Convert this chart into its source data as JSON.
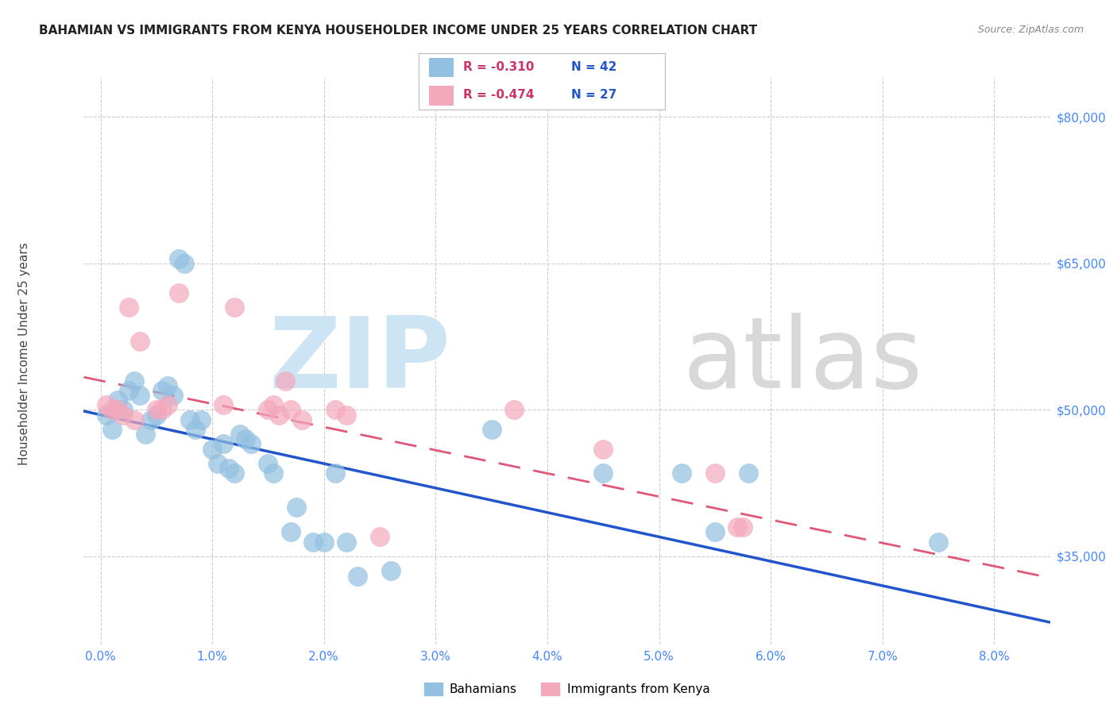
{
  "title": "BAHAMIAN VS IMMIGRANTS FROM KENYA HOUSEHOLDER INCOME UNDER 25 YEARS CORRELATION CHART",
  "source": "Source: ZipAtlas.com",
  "xlabel_ticks": [
    "0.0%",
    "1.0%",
    "2.0%",
    "3.0%",
    "4.0%",
    "5.0%",
    "6.0%",
    "7.0%",
    "8.0%"
  ],
  "xlabel_vals": [
    0.0,
    1.0,
    2.0,
    3.0,
    4.0,
    5.0,
    6.0,
    7.0,
    8.0
  ],
  "ylabel_ticks": [
    35000,
    50000,
    65000,
    80000
  ],
  "ylabel_labels": [
    "$35,000",
    "$50,000",
    "$65,000",
    "$80,000"
  ],
  "ymin": 26000,
  "ymax": 84000,
  "xmin": -0.15,
  "xmax": 8.5,
  "legend_r1": "R = -0.310",
  "legend_n1": "N = 42",
  "legend_r2": "R = -0.474",
  "legend_n2": "N = 27",
  "series1_label": "Bahamians",
  "series2_label": "Immigrants from Kenya",
  "color1": "#92c0e0",
  "color2": "#f4a8bc",
  "trendline1_color": "#2255cc",
  "trendline2_color": "#e05878",
  "title_fontsize": 11,
  "source_fontsize": 9,
  "background_color": "#ffffff",
  "grid_color": "#cccccc",
  "axis_color": "#4488ff",
  "blue_x": [
    0.05,
    0.1,
    0.15,
    0.2,
    0.25,
    0.3,
    0.35,
    0.4,
    0.45,
    0.5,
    0.55,
    0.6,
    0.65,
    0.7,
    0.75,
    0.8,
    0.85,
    0.9,
    1.0,
    1.05,
    1.1,
    1.15,
    1.2,
    1.25,
    1.3,
    1.35,
    1.5,
    1.55,
    1.7,
    1.75,
    1.9,
    2.0,
    2.1,
    2.2,
    2.3,
    2.6,
    3.5,
    4.5,
    5.2,
    5.5,
    5.8,
    7.5
  ],
  "blue_y": [
    49500,
    48000,
    51000,
    50000,
    52000,
    53000,
    51500,
    47500,
    49000,
    49500,
    52000,
    52500,
    51500,
    65500,
    65000,
    49000,
    48000,
    49000,
    46000,
    44500,
    46500,
    44000,
    43500,
    47500,
    47000,
    46500,
    44500,
    43500,
    37500,
    40000,
    36500,
    36500,
    43500,
    36500,
    33000,
    33500,
    48000,
    43500,
    43500,
    37500,
    43500,
    36500
  ],
  "pink_x": [
    0.05,
    0.1,
    0.15,
    0.2,
    0.25,
    0.3,
    0.35,
    0.5,
    0.55,
    0.6,
    0.7,
    1.1,
    1.2,
    1.5,
    1.55,
    1.6,
    1.65,
    1.7,
    1.8,
    2.1,
    2.2,
    2.5,
    3.7,
    4.5,
    5.5,
    5.7,
    5.75
  ],
  "pink_y": [
    50500,
    50000,
    50000,
    49500,
    60500,
    49000,
    57000,
    50000,
    50000,
    50500,
    62000,
    50500,
    60500,
    50000,
    50500,
    49500,
    53000,
    50000,
    49000,
    50000,
    49500,
    37000,
    50000,
    46000,
    43500,
    38000,
    38000
  ]
}
